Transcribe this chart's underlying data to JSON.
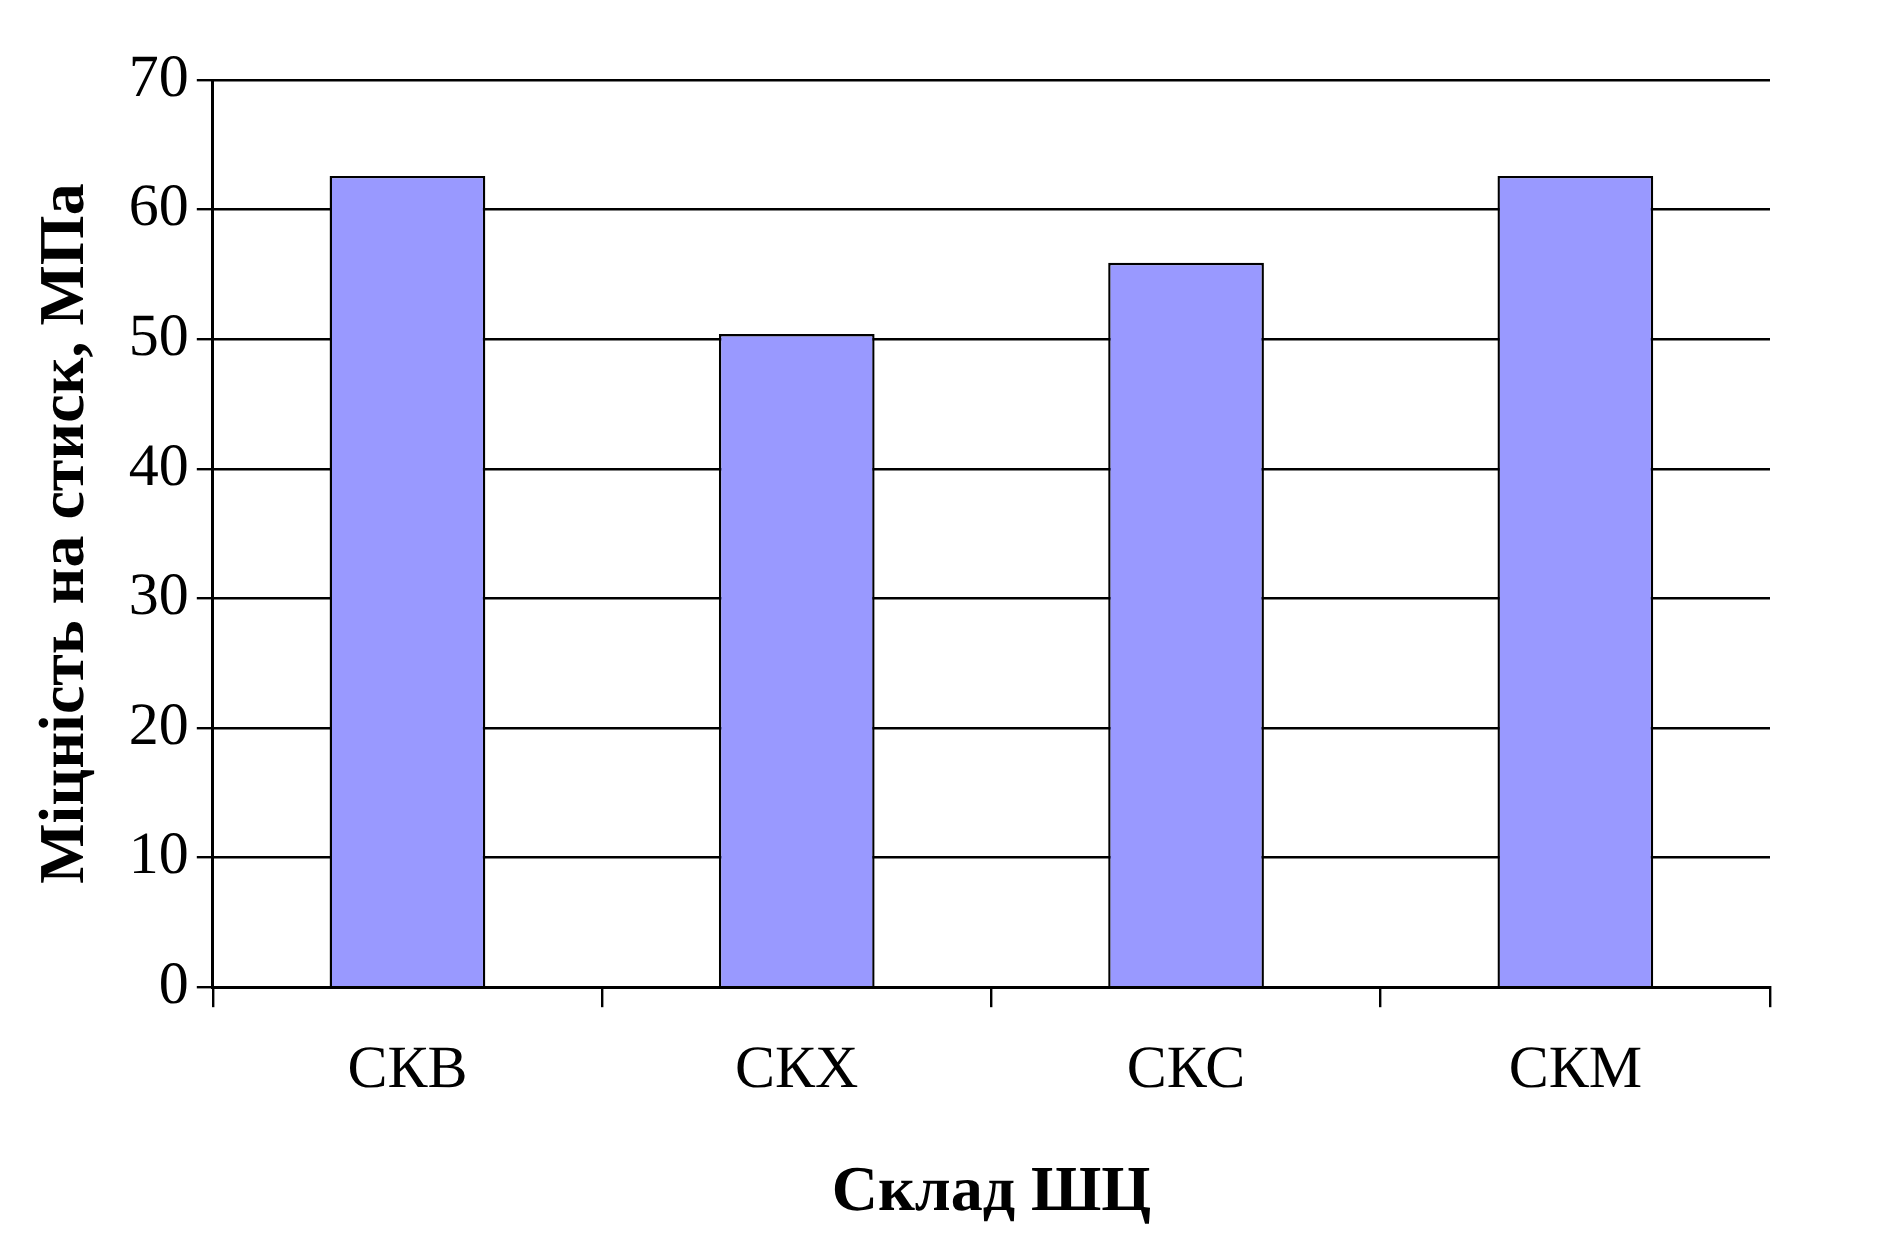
{
  "chart_data": {
    "type": "bar",
    "xlabel": "Склад ШЦ",
    "ylabel": "Міцність на стиск, МПа",
    "categories": [
      "СКВ",
      "СКХ",
      "СКС",
      "СКМ"
    ],
    "values": [
      62.6,
      50.4,
      55.9,
      62.6
    ],
    "color": "#9999ff",
    "ylim": [
      0,
      70
    ],
    "yticks": [
      0,
      10,
      20,
      30,
      40,
      50,
      60,
      70
    ],
    "grid": true
  }
}
